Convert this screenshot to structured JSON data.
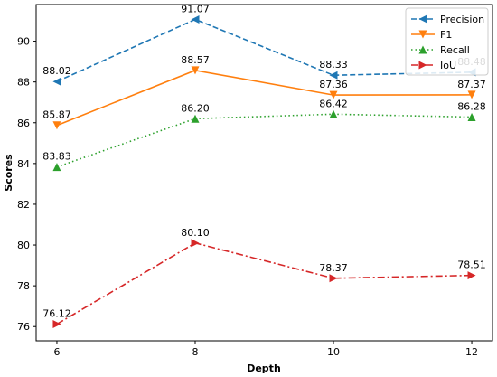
{
  "chart_data": {
    "type": "line",
    "xlabel": "Depth",
    "ylabel": "Scores",
    "x": [
      6,
      8,
      10,
      12
    ],
    "xticks": [
      "6",
      "8",
      "10",
      "12"
    ],
    "yticks": [
      "76",
      "78",
      "80",
      "82",
      "84",
      "86",
      "88",
      "90"
    ],
    "xlim": [
      5.7,
      12.3
    ],
    "ylim": [
      75.3,
      91.8
    ],
    "legend_position": "top-right",
    "grid": false,
    "series": [
      {
        "name": "Precision",
        "values": [
          88.02,
          91.07,
          88.33,
          88.48
        ],
        "labels": [
          "88.02",
          "91.07",
          "88.33",
          "88.48"
        ],
        "color": "#1f77b4",
        "linestyle": "dashed",
        "marker": "triangle-left"
      },
      {
        "name": "F1",
        "values": [
          85.87,
          88.57,
          87.36,
          87.37
        ],
        "labels": [
          "85.87",
          "88.57",
          "87.36",
          "87.37"
        ],
        "color": "#ff7f0e",
        "linestyle": "solid",
        "marker": "triangle-down"
      },
      {
        "name": "Recall",
        "values": [
          83.83,
          86.2,
          86.42,
          86.28
        ],
        "labels": [
          "83.83",
          "86.20",
          "86.42",
          "86.28"
        ],
        "color": "#2ca02c",
        "linestyle": "dotted",
        "marker": "triangle-up"
      },
      {
        "name": "IoU",
        "values": [
          76.12,
          80.1,
          78.37,
          78.51
        ],
        "labels": [
          "76.12",
          "80.10",
          "78.37",
          "78.51"
        ],
        "color": "#d62728",
        "linestyle": "dashdot",
        "marker": "triangle-right"
      }
    ]
  }
}
